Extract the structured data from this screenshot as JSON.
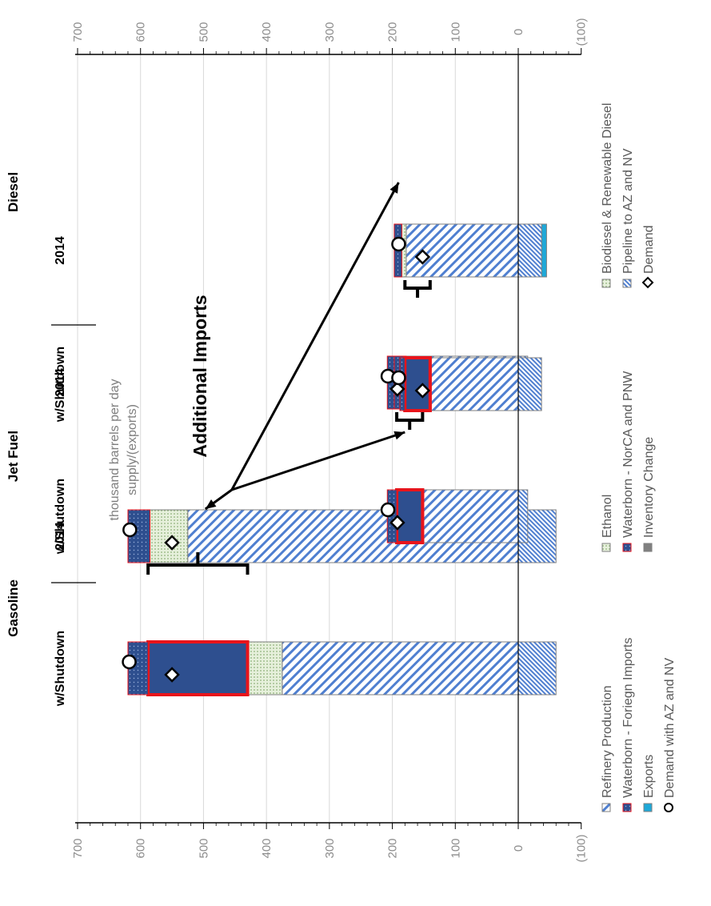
{
  "chart_data": {
    "type": "bar",
    "stacked": true,
    "unit_label": [
      "thousand barrels per day",
      "supply/(exports)"
    ],
    "y_ticks": [
      "700",
      "600",
      "500",
      "400",
      "300",
      "200",
      "100",
      "0",
      "(100)"
    ],
    "ylim": [
      -100,
      700
    ],
    "grid": true,
    "groups": [
      {
        "name": "Gasoline",
        "bars": [
          "2014",
          "w/Shutdown"
        ]
      },
      {
        "name": "Jet Fuel",
        "bars": [
          "2014",
          "w/Shutdown"
        ]
      },
      {
        "name": "Diesel",
        "bars": [
          "2014",
          "w/Shutdown"
        ]
      }
    ],
    "bars": [
      {
        "group": "Gasoline",
        "label": "2014",
        "segments": [
          {
            "series": "Pipeline to AZ and NV",
            "from": -60,
            "to": 0
          },
          {
            "series": "Refinery Production",
            "from": 0,
            "to": 525
          },
          {
            "series": "Ethanol",
            "from": 525,
            "to": 585
          },
          {
            "series": "Waterborn - Foriegn Imports",
            "from": 585,
            "to": 620
          }
        ],
        "demand": 550,
        "demand_az_nv": 617
      },
      {
        "group": "Gasoline",
        "label": "w/Shutdown",
        "segments": [
          {
            "series": "Pipeline to AZ and NV",
            "from": -60,
            "to": 0
          },
          {
            "series": "Refinery Production",
            "from": 0,
            "to": 375
          },
          {
            "series": "Ethanol",
            "from": 375,
            "to": 430
          },
          {
            "series": "Waterborn - Foriegn Imports",
            "from": 430,
            "to": 588,
            "highlight": true
          },
          {
            "series": "Waterborn - Foriegn Imports",
            "from": 588,
            "to": 620
          }
        ],
        "demand": 550,
        "demand_az_nv": 618
      },
      {
        "group": "Jet Fuel",
        "label": "2014",
        "segments": [
          {
            "series": "Pipeline to AZ and NV",
            "from": -15,
            "to": 0
          },
          {
            "series": "Refinery Production",
            "from": 0,
            "to": 178
          },
          {
            "series": "Waterborn - NorCA and PNW",
            "from": 178,
            "to": 197
          },
          {
            "series": "Waterborn - Foriegn Imports",
            "from": 197,
            "to": 208
          }
        ],
        "demand": 192,
        "demand_az_nv": 207
      },
      {
        "group": "Jet Fuel",
        "label": "w/Shutdown",
        "segments": [
          {
            "series": "Pipeline to AZ and NV",
            "from": -15,
            "to": 0
          },
          {
            "series": "Refinery Production",
            "from": 0,
            "to": 152
          },
          {
            "series": "Waterborn - Foriegn Imports",
            "from": 152,
            "to": 193,
            "highlight": true
          },
          {
            "series": "Waterborn - Foriegn Imports",
            "from": 193,
            "to": 208
          }
        ],
        "demand": 192,
        "demand_az_nv": 207
      },
      {
        "group": "Diesel",
        "label": "2014",
        "segments": [
          {
            "series": "Exports",
            "from": -45,
            "to": -37
          },
          {
            "series": "Pipeline to AZ and NV",
            "from": -37,
            "to": 0
          },
          {
            "series": "Refinery Production",
            "from": 0,
            "to": 178
          },
          {
            "series": "Biodiesel & Renewable Diesel",
            "from": 178,
            "to": 185
          },
          {
            "series": "Waterborn - Foriegn Imports",
            "from": 185,
            "to": 197
          }
        ],
        "demand": 152,
        "demand_az_nv": 190
      },
      {
        "group": "Diesel",
        "label": "w/Shutdown",
        "segments": [
          {
            "series": "Pipeline to AZ and NV",
            "from": -37,
            "to": 0
          },
          {
            "series": "Refinery Production",
            "from": 0,
            "to": 140
          },
          {
            "series": "Waterborn - Foriegn Imports",
            "from": 140,
            "to": 180,
            "highlight": true
          },
          {
            "series": "Waterborn - Foriegn Imports",
            "from": 180,
            "to": 188
          }
        ],
        "demand": 152,
        "demand_az_nv": 190
      }
    ],
    "annotation": "Additional Imports",
    "legend": [
      {
        "label": "Refinery Production",
        "pattern": "diag-blue"
      },
      {
        "label": "Ethanol",
        "pattern": "dots-green"
      },
      {
        "label": "Biodiesel & Renewable Diesel",
        "pattern": "dots-green"
      },
      {
        "label": "Waterborn - Foriegn Imports",
        "pattern": "dots-navy-red"
      },
      {
        "label": "Waterborn - NorCA and PNW",
        "pattern": "dots-navy-red"
      },
      {
        "label": "Pipeline to AZ and NV",
        "pattern": "hatch-blue"
      },
      {
        "label": "Exports",
        "pattern": "cyan"
      },
      {
        "label": "Inventory Change",
        "pattern": "gray"
      },
      {
        "label": "Demand",
        "pattern": "diamond"
      },
      {
        "label": "Demand with AZ and NV",
        "pattern": "circle"
      }
    ],
    "colors": {
      "navy": "#2e4f8f",
      "light_blue": "#4f7fd0",
      "highlight": "#e8141b",
      "cyan": "#1ea8d8",
      "green": "#cfe0bf",
      "gray": "#808080"
    }
  }
}
